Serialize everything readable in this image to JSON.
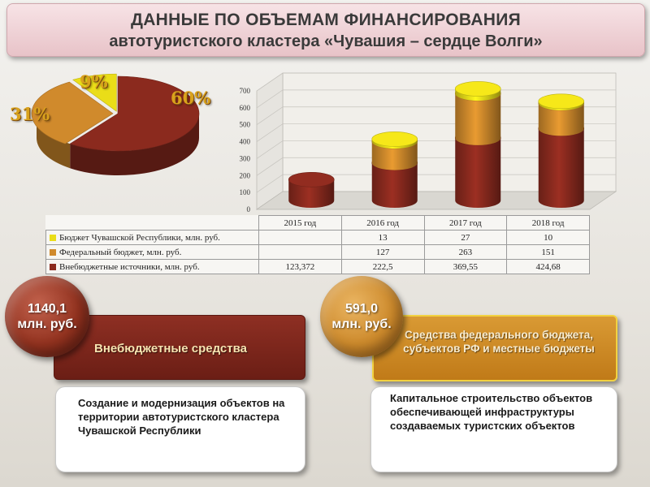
{
  "header": {
    "title_line1": "ДАННЫЕ ПО ОБЪЕМАМ ФИНАНСИРОВАНИЯ",
    "title_line2": "автотуристского кластера «Чувашия – сердце Волги»"
  },
  "pie": {
    "labels": {
      "republic": "9%",
      "federal": "31%",
      "extra": "60%"
    }
  },
  "chart_data": [
    {
      "type": "pie",
      "slices": [
        {
          "name": "Внебюджетные источники",
          "value": 60,
          "color": "#8b2a1e"
        },
        {
          "name": "Федеральный бюджет",
          "value": 31,
          "color": "#d08a2c"
        },
        {
          "name": "Бюджет Чувашской Республики",
          "value": 9,
          "color": "#eadd18"
        }
      ]
    },
    {
      "type": "bar",
      "stacked": true,
      "categories": [
        "2015 год",
        "2016 год",
        "2017 год",
        "2018 год"
      ],
      "ylim": [
        0,
        700
      ],
      "yticks": [
        "0",
        "100",
        "200",
        "300",
        "400",
        "500",
        "600",
        "700"
      ],
      "grid": true,
      "series": [
        {
          "name": "Бюджет Чувашской Республики, млн. руб.",
          "color": "#eadd18",
          "values": [
            null,
            13,
            27,
            10
          ],
          "labels": [
            "",
            "13",
            "27",
            "10"
          ]
        },
        {
          "name": "Федеральный бюджет, млн. руб.",
          "color": "#d08a2c",
          "values": [
            null,
            127,
            263,
            151
          ],
          "labels": [
            "",
            "127",
            "263",
            "151"
          ]
        },
        {
          "name": "Внебюджетные источники, млн. руб.",
          "color": "#8b2a1e",
          "values": [
            123.372,
            222.5,
            369.55,
            424.68
          ],
          "labels": [
            "123,372",
            "222,5",
            "369,55",
            "424,68"
          ]
        }
      ]
    }
  ],
  "panels": {
    "left": {
      "amount_line1": "1140,1",
      "amount_line2": "млн. руб.",
      "title": "Внебюджетные средства",
      "description": "Создание и модернизация объектов на территории автотуристского кластера Чувашской Республики"
    },
    "right": {
      "amount_line1": "591,0",
      "amount_line2": "млн. руб.",
      "title": "Средства федерального бюджета, субъектов РФ и местные бюджеты",
      "description": "Капитальное строительство объектов обеспечивающей инфраструктуры создаваемых туристских объектов"
    }
  }
}
